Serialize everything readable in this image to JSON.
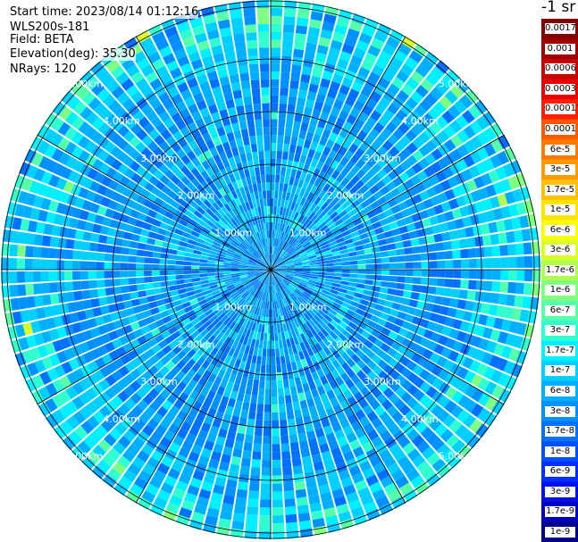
{
  "info": {
    "start_time": "Start time: 2023/08/14 01:12:16",
    "device": "WLS200s-181",
    "field": "Field: BETA",
    "elevation": "Elevation(deg): 35.30",
    "nrays": "NRays: 120"
  },
  "range_rings": [
    "1.00km",
    "2.00km",
    "3.00km",
    "4.00km",
    "5.00km"
  ],
  "colorbar": {
    "title": "-1 sr",
    "ticks": [
      "0.0017",
      "0.001",
      "0.0006",
      "0.0003",
      "0.00017",
      "0.0001",
      "6e-5",
      "3e-5",
      "1.7e-5",
      "1e-5",
      "6e-6",
      "3e-6",
      "1.7e-6",
      "1e-6",
      "6e-7",
      "3e-7",
      "1.7e-7",
      "1e-7",
      "6e-8",
      "3e-8",
      "1.7e-8",
      "1e-8",
      "6e-9",
      "3e-9",
      "1.7e-9",
      "1e-9"
    ],
    "colors": [
      "#800000",
      "#a00000",
      "#c80000",
      "#e80000",
      "#ff2000",
      "#ff5800",
      "#ff7800",
      "#ff9a00",
      "#ffc000",
      "#ffe400",
      "#f8ff08",
      "#d8ff28",
      "#b0ff50",
      "#80ff80",
      "#58ffa8",
      "#30ffd0",
      "#00f0ff",
      "#00d0ff",
      "#00b0ff",
      "#0090ff",
      "#0070ff",
      "#0050ff",
      "#0030ff",
      "#0010e8",
      "#0000c0",
      "#00008c"
    ]
  }
}
